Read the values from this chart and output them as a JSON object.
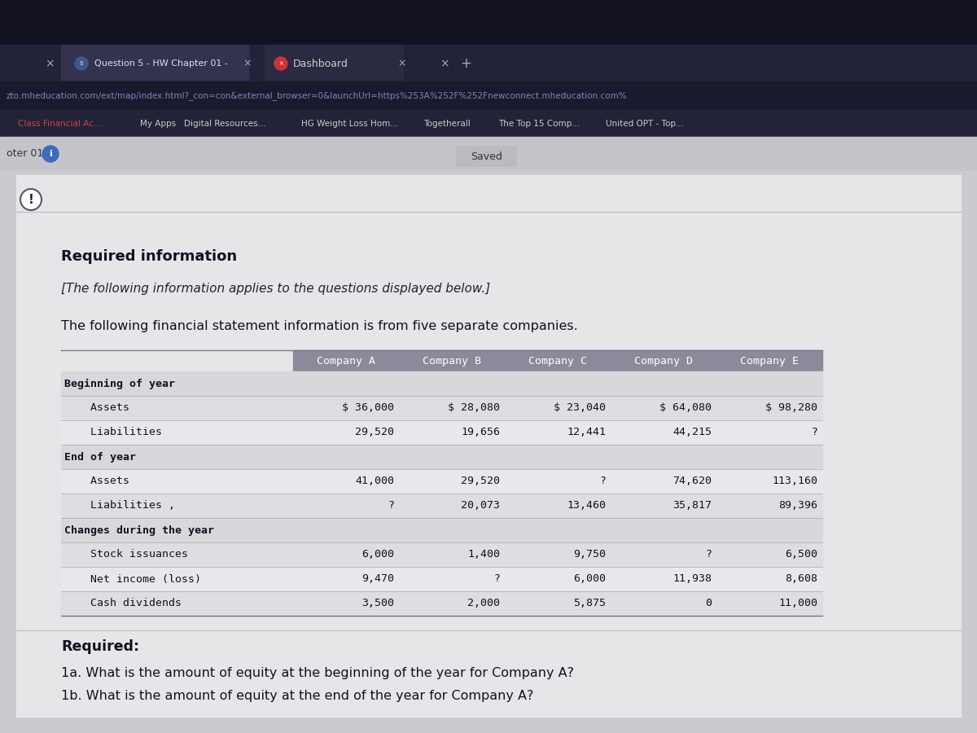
{
  "browser_bg": "#1a1a2a",
  "tab1_text": "Question 5 - HW Chapter 01 -",
  "tab2_text": "Dashboard",
  "url_text": "zto.mheducation.com/ext/map/index.html?_con=con&external_browser=0&launchUrl=https%253A%252F%252Fnewconnect.mheducation.com%",
  "bookmarks": [
    "Class Financial Ac...",
    "My Apps",
    "Digital Resources...",
    "HG Weight Loss Hom...",
    "Togetherall",
    "The Top 15 Comp...",
    "United OPT - Top..."
  ],
  "page_nav": "oter 01",
  "saved_text": "Saved",
  "required_info_title": "Required information",
  "italic_text": "[The following information applies to the questions displayed below.]",
  "intro_text": "The following financial statement information is from five separate companies.",
  "companies": [
    "Company A",
    "Company B",
    "Company C",
    "Company D",
    "Company E"
  ],
  "rows_data": [
    [
      "Beginning of year",
      "",
      "",
      "",
      "",
      ""
    ],
    [
      "    Assets",
      "$ 36,000",
      "$ 28,080",
      "$ 23,040",
      "$ 64,080",
      "$ 98,280"
    ],
    [
      "    Liabilities",
      "29,520",
      "19,656",
      "12,441",
      "44,215",
      "?"
    ],
    [
      "End of year",
      "",
      "",
      "",
      "",
      ""
    ],
    [
      "    Assets",
      "41,000",
      "29,520",
      "?",
      "74,620",
      "113,160"
    ],
    [
      "    Liabilities ,",
      "?",
      "20,073",
      "13,460",
      "35,817",
      "89,396"
    ],
    [
      "Changes during the year",
      "",
      "",
      "",
      "",
      ""
    ],
    [
      "    Stock issuances",
      "6,000",
      "1,400",
      "9,750",
      "?",
      "6,500"
    ],
    [
      "    Net income (loss)",
      "9,470",
      "?",
      "6,000",
      "11,938",
      "8,608"
    ],
    [
      "    Cash dividends",
      "3,500",
      "2,000",
      "5,875",
      "0",
      "11,000"
    ]
  ],
  "section_header_rows": [
    0,
    3,
    6
  ],
  "required_label": "Required:",
  "q1a": "1a. What is the amount of equity at the beginning of the year for Company A?",
  "q1b": "1b. What is the amount of equity at the end of the year for Company A?"
}
